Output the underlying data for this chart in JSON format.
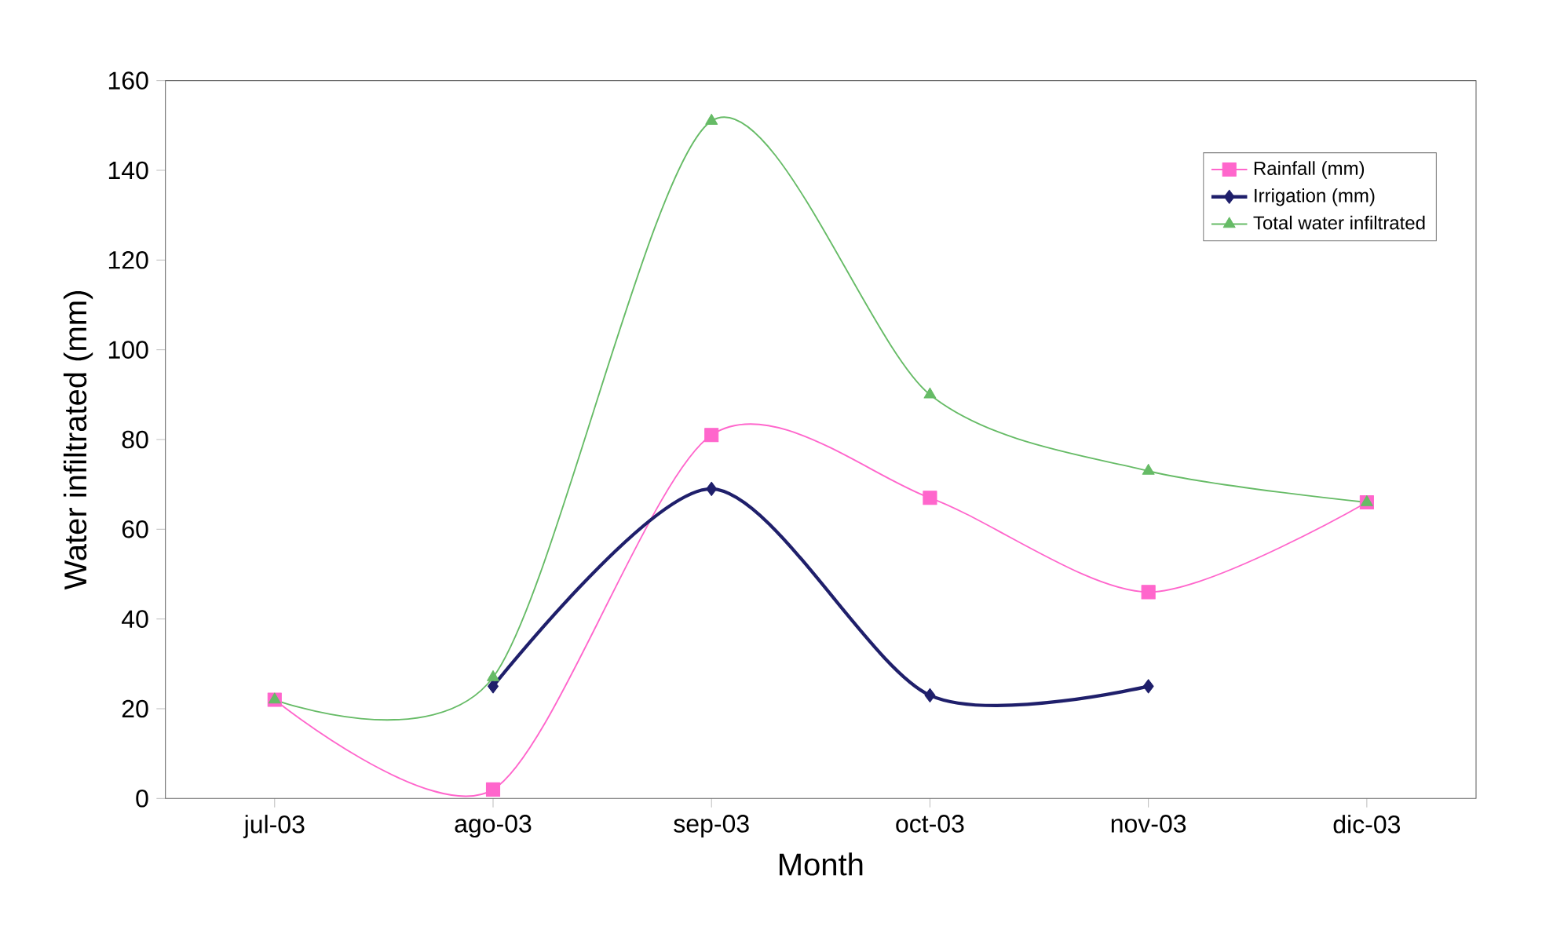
{
  "chart_data": {
    "type": "line",
    "xlabel": "Month",
    "ylabel": "Water infiltrated (mm)",
    "categories": [
      "jul-03",
      "ago-03",
      "sep-03",
      "oct-03",
      "nov-03",
      "dic-03"
    ],
    "series": [
      {
        "name": "Rainfall (mm)",
        "color": "#ff66cc",
        "marker": "square",
        "values": [
          22,
          2,
          81,
          67,
          46,
          66
        ]
      },
      {
        "name": "Irrigation (mm)",
        "color": "#1f1f6b",
        "marker": "diamond",
        "values": [
          null,
          25,
          69,
          23,
          25,
          null
        ]
      },
      {
        "name": "Total water infiltrated",
        "color": "#66bb66",
        "marker": "triangle",
        "values": [
          22,
          27,
          151,
          90,
          73,
          66
        ]
      }
    ],
    "ylim": [
      0,
      160
    ],
    "yticks": [
      0,
      20,
      40,
      60,
      80,
      100,
      120,
      140,
      160
    ],
    "grid": false,
    "legend": "top right"
  }
}
